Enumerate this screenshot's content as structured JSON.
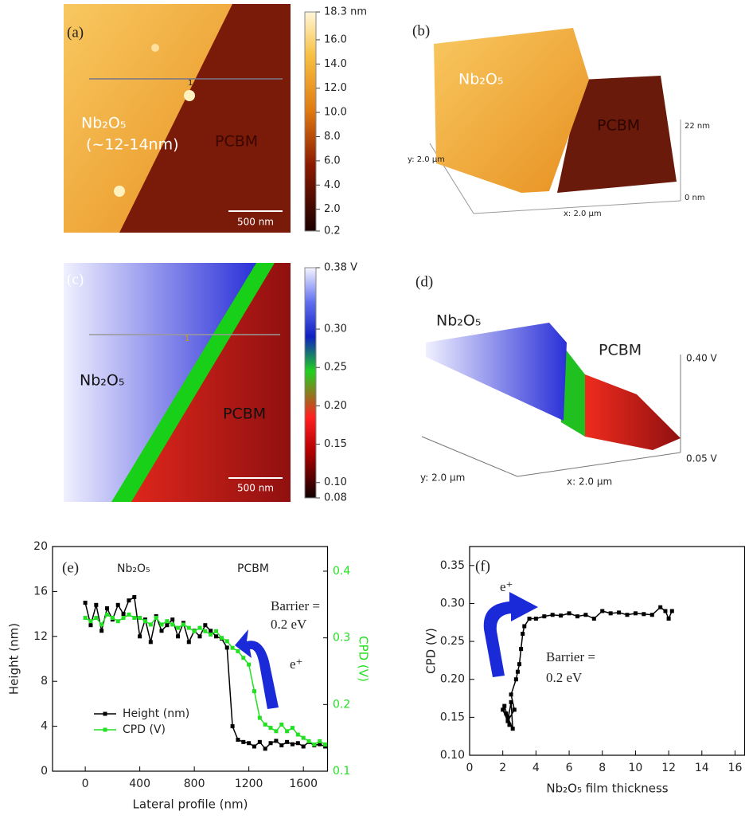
{
  "panels": [
    {
      "label": "(a)",
      "material": "Nb₂O₅",
      "thickness": "(~12-14nm)",
      "region": "PCBM",
      "scale_bar": "500 nm",
      "profile_marker": "1",
      "colorbar": {
        "lim": [
          0.2,
          18.3
        ],
        "ticks": [
          {
            "value": 18.3,
            "label": "18.3 nm"
          },
          {
            "value": 16,
            "label": "16.0"
          },
          {
            "value": 14,
            "label": "14.0"
          },
          {
            "value": 12,
            "label": "12.0"
          },
          {
            "value": 10,
            "label": "10.0"
          },
          {
            "value": 8,
            "label": "8.0"
          },
          {
            "value": 6,
            "label": "6.0"
          },
          {
            "value": 4,
            "label": "4.0"
          },
          {
            "value": 2,
            "label": "2.0"
          },
          0.2
        ]
      }
    },
    {
      "label": "(b)",
      "material": "Nb₂O₅",
      "region": "PCBM",
      "z_top": "22 nm",
      "z_bottom": "0 nm",
      "y_extent": "y: 2.0 µm",
      "x_extent": "x: 2.0 µm"
    },
    {
      "label": "(c)",
      "material": "Nb₂O₅",
      "region": "PCBM",
      "scale_bar": "500 nm",
      "profile_marker": "1",
      "colorbar": {
        "lim": [
          0.08,
          0.38
        ],
        "ticks": [
          {
            "value": 0.38,
            "label": "0.38 V"
          },
          {
            "value": 0.3,
            "label": "0.30"
          },
          0.25,
          {
            "value": 0.2,
            "label": "0.20"
          },
          0.15,
          {
            "value": 0.1,
            "label": "0.10"
          },
          0.08
        ]
      }
    },
    {
      "label": "(d)",
      "material": "Nb₂O₅",
      "region": "PCBM",
      "z_top": "0.40 V",
      "z_bottom": "0.05 V",
      "y_extent": "y: 2.0 µm",
      "x_extent": "x: 2.0 µm"
    }
  ],
  "chart_data": [
    {
      "type": "line",
      "panel_label": "(e)",
      "left_region": "Nb₂O₅",
      "right_region": "PCBM",
      "barrier": [
        "Barrier =",
        "0.2 eV"
      ],
      "carrier": "e⁺",
      "x_label": "Lateral profile (nm)",
      "y_label": "Height (nm)",
      "y2_label": "CPD (V)",
      "legend": "lower left",
      "x": [
        0,
        40,
        80,
        120,
        160,
        200,
        240,
        280,
        320,
        360,
        400,
        440,
        480,
        520,
        560,
        600,
        640,
        680,
        720,
        760,
        800,
        840,
        880,
        920,
        960,
        1000,
        1040,
        1080,
        1120,
        1160,
        1200,
        1240,
        1280,
        1320,
        1360,
        1400,
        1440,
        1480,
        1520,
        1560,
        1600,
        1640,
        1680,
        1720,
        1760
      ],
      "series": [
        {
          "name": "Height (nm)",
          "color": "#000000",
          "values": [
            15,
            13,
            14.8,
            12.5,
            14.5,
            13.5,
            14.8,
            14,
            15.2,
            15.5,
            12,
            13.5,
            11.5,
            13.8,
            12.5,
            13,
            13.5,
            12,
            13.2,
            11.5,
            12.5,
            12,
            13,
            12.5,
            12,
            11.8,
            11,
            4,
            2.8,
            2.6,
            2.5,
            2.2,
            2.6,
            2,
            2.5,
            2.7,
            2.3,
            2.6,
            2.4,
            2.5,
            2.2,
            2.6,
            2.3,
            2.4,
            2.2
          ]
        },
        {
          "name": "CPD (V)",
          "color": "#22e022",
          "axis": "y2",
          "values": [
            0.33,
            0.325,
            0.33,
            0.32,
            0.335,
            0.33,
            0.325,
            0.33,
            0.335,
            0.33,
            0.33,
            0.325,
            0.32,
            0.33,
            0.32,
            0.325,
            0.32,
            0.315,
            0.32,
            0.315,
            0.31,
            0.315,
            0.31,
            0.305,
            0.31,
            0.3,
            0.295,
            0.285,
            0.28,
            0.27,
            0.26,
            0.22,
            0.18,
            0.17,
            0.165,
            0.16,
            0.17,
            0.16,
            0.165,
            0.155,
            0.15,
            0.145,
            0.14,
            0.145,
            0.14
          ]
        }
      ],
      "xlim": [
        -240,
        1780
      ],
      "xticks": [
        0,
        400,
        800,
        1200,
        1600
      ],
      "ylim": [
        0,
        20
      ],
      "yticks": [
        0,
        4,
        8,
        12,
        16,
        20
      ],
      "y2lim": [
        0.1,
        0.437
      ],
      "y2ticks": [
        0.1,
        0.2,
        0.3,
        0.4
      ]
    },
    {
      "type": "line",
      "panel_label": "(f)",
      "barrier": [
        "Barrier =",
        "0.2 eV"
      ],
      "carrier": "e⁺",
      "x_label": "Nb₂O₅ film thickness",
      "y_label": "CPD (V)",
      "x": [
        2.1,
        2.3,
        2.0,
        2.4,
        2.2,
        2.6,
        2.5,
        2.3,
        2.7,
        2.5,
        2.8,
        2.9,
        3.0,
        3.1,
        3.2,
        3.3,
        3.6,
        4.0,
        4.5,
        5.0,
        5.5,
        6.0,
        6.5,
        7.0,
        7.5,
        8.0,
        8.5,
        9.0,
        9.5,
        10.0,
        10.5,
        11.0,
        11.5,
        11.8,
        12.0,
        12.2
      ],
      "series": [
        {
          "color": "#000000",
          "values": [
            0.165,
            0.15,
            0.16,
            0.14,
            0.155,
            0.135,
            0.17,
            0.145,
            0.16,
            0.18,
            0.2,
            0.21,
            0.22,
            0.24,
            0.26,
            0.27,
            0.28,
            0.28,
            0.283,
            0.285,
            0.284,
            0.287,
            0.283,
            0.285,
            0.28,
            0.29,
            0.287,
            0.288,
            0.285,
            0.287,
            0.286,
            0.285,
            0.295,
            0.29,
            0.28,
            0.29
          ]
        }
      ],
      "xlim": [
        0,
        16.6
      ],
      "xticks": [
        0,
        2,
        4,
        6,
        8,
        10,
        12,
        14,
        16
      ],
      "ylim": [
        0.1,
        0.375
      ],
      "yticks": [
        {
          "value": 0.1,
          "label": "0.10"
        },
        0.15,
        {
          "value": 0.2,
          "label": "0.20"
        },
        0.25,
        {
          "value": 0.3,
          "label": "0.30"
        },
        0.35
      ]
    }
  ]
}
